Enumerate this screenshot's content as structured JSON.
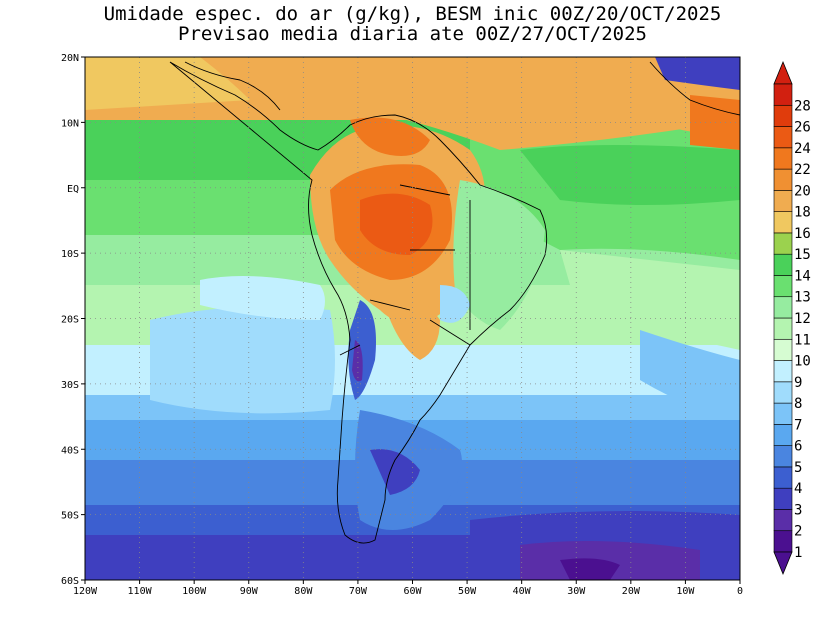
{
  "title": {
    "line1": "Umidade espec. do ar (g/kg), BESM inic 00Z/20/OCT/2025",
    "line2": "Previsao media diaria ate 00Z/27/OCT/2025"
  },
  "axes": {
    "lon_ticks": [
      "120W",
      "110W",
      "100W",
      "90W",
      "80W",
      "70W",
      "60W",
      "50W",
      "40W",
      "30W",
      "20W",
      "10W",
      "0"
    ],
    "lat_ticks": [
      "20N",
      "10N",
      "EQ",
      "10S",
      "20S",
      "30S",
      "40S",
      "50S",
      "60S"
    ],
    "lon_range": [
      -120,
      0
    ],
    "lat_range": [
      -60,
      20
    ],
    "grid": true
  },
  "colorbar": {
    "levels": [
      "1",
      "2",
      "3",
      "4",
      "5",
      "6",
      "7",
      "8",
      "9",
      "10",
      "11",
      "12",
      "13",
      "14",
      "15",
      "16",
      "18",
      "20",
      "22",
      "24",
      "26",
      "28"
    ],
    "colors": [
      "#4b1090",
      "#5a2ea8",
      "#3f3fbf",
      "#3c5fd0",
      "#4a85e0",
      "#5aa8f0",
      "#7cc4f8",
      "#a0dcfc",
      "#c2f0ff",
      "#d6fcd2",
      "#b4f4b0",
      "#96eca0",
      "#6ae070",
      "#4ad15a",
      "#9bd24e",
      "#f0c860",
      "#f0ac50",
      "#f09032",
      "#f0781e",
      "#eb5a14",
      "#e03c0c",
      "#d22010"
    ]
  },
  "regions": [
    {
      "name": "northern-tropics-band",
      "color": "#f0ac50"
    },
    {
      "name": "atlantic-equatorial",
      "color": "#4ad15a"
    },
    {
      "name": "amazon-core",
      "color": "#f0781e"
    },
    {
      "name": "southern-ocean",
      "color": "#4b1090"
    },
    {
      "name": "andes-dry",
      "color": "#3c5fd0"
    }
  ]
}
